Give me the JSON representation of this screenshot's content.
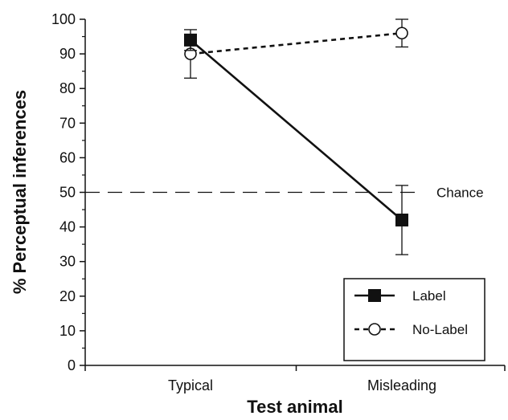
{
  "chart_data": {
    "type": "line",
    "title": "",
    "xlabel": "Test animal",
    "ylabel": "% Perceptual inferences",
    "categories": [
      "Typical",
      "Misleading"
    ],
    "ylim": [
      0,
      100
    ],
    "yticks": [
      "0",
      "10",
      "20",
      "30",
      "40",
      "50",
      "60",
      "70",
      "80",
      "90",
      "100"
    ],
    "grid": false,
    "legend_position": "bottom-right",
    "series": [
      {
        "name": "Label",
        "values": [
          94,
          42
        ],
        "error_low": [
          91,
          32
        ],
        "error_high": [
          97,
          52
        ],
        "marker": "filled-square",
        "line_style": "solid",
        "color": "#111111"
      },
      {
        "name": "No-Label",
        "values": [
          90,
          96
        ],
        "error_low": [
          83,
          92
        ],
        "error_high": [
          94,
          100
        ],
        "marker": "open-circle",
        "line_style": "dashed",
        "color": "#111111"
      }
    ],
    "reference_line": {
      "y": 50,
      "label": "Chance",
      "line_style": "long-dash"
    }
  }
}
